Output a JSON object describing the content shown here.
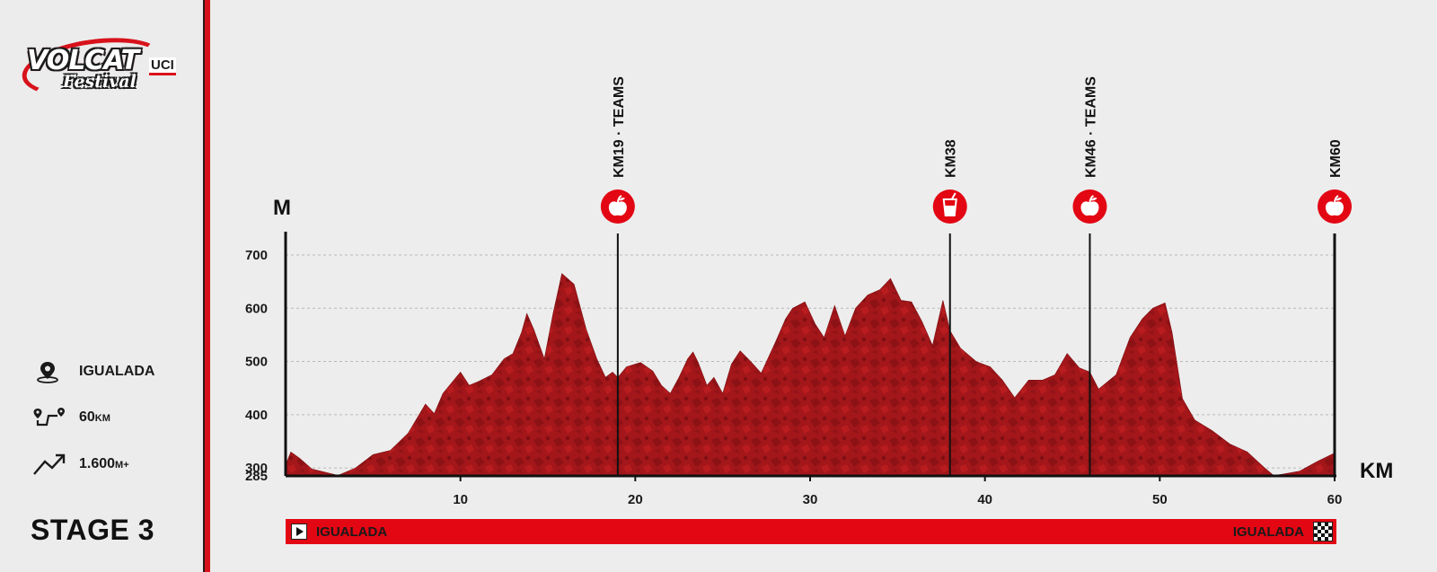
{
  "brand": {
    "logo_text": "VOLCAT",
    "logo_suffix": "UCI",
    "logo_sub": "Festival",
    "accent": "#d8121b",
    "profile_fill": "#a3161a"
  },
  "stats": {
    "location": "IGUALADA",
    "distance_value": "60",
    "distance_unit": "KM",
    "elevation_value": "1.600",
    "elevation_unit": "M+"
  },
  "stage_title": "STAGE 3",
  "route": {
    "start": "IGUALADA",
    "finish": "IGUALADA"
  },
  "chart_data": {
    "type": "area",
    "ylabel": "M",
    "xlabel": "KM",
    "xlim": [
      0,
      60
    ],
    "ylim": [
      285,
      700
    ],
    "x_ticks": [
      10,
      20,
      30,
      40,
      50,
      60
    ],
    "y_ticks": [
      285,
      300,
      400,
      500,
      600,
      700
    ],
    "grid": true,
    "profile": [
      [
        0,
        305
      ],
      [
        0.3,
        330
      ],
      [
        0.8,
        318
      ],
      [
        1.5,
        298
      ],
      [
        2.5,
        290
      ],
      [
        3,
        286
      ],
      [
        4,
        300
      ],
      [
        5,
        325
      ],
      [
        6,
        333
      ],
      [
        7,
        365
      ],
      [
        8,
        420
      ],
      [
        8.5,
        402
      ],
      [
        9,
        440
      ],
      [
        10,
        480
      ],
      [
        10.5,
        455
      ],
      [
        11,
        462
      ],
      [
        11.8,
        475
      ],
      [
        12.5,
        505
      ],
      [
        13,
        515
      ],
      [
        13.5,
        555
      ],
      [
        13.8,
        590
      ],
      [
        14.2,
        560
      ],
      [
        14.8,
        505
      ],
      [
        15.3,
        590
      ],
      [
        15.8,
        665
      ],
      [
        16.5,
        645
      ],
      [
        17.2,
        560
      ],
      [
        17.8,
        505
      ],
      [
        18.3,
        470
      ],
      [
        18.7,
        480
      ],
      [
        19,
        470
      ],
      [
        19.5,
        490
      ],
      [
        20.3,
        498
      ],
      [
        21,
        482
      ],
      [
        21.5,
        455
      ],
      [
        22,
        440
      ],
      [
        22.5,
        470
      ],
      [
        23,
        505
      ],
      [
        23.3,
        518
      ],
      [
        23.6,
        498
      ],
      [
        24.1,
        455
      ],
      [
        24.5,
        470
      ],
      [
        25,
        440
      ],
      [
        25.5,
        495
      ],
      [
        26,
        520
      ],
      [
        26.6,
        500
      ],
      [
        27.2,
        478
      ],
      [
        28,
        535
      ],
      [
        28.6,
        580
      ],
      [
        29,
        600
      ],
      [
        29.7,
        612
      ],
      [
        30.3,
        570
      ],
      [
        30.8,
        545
      ],
      [
        31.4,
        605
      ],
      [
        32,
        548
      ],
      [
        32.6,
        600
      ],
      [
        33.3,
        625
      ],
      [
        34,
        635
      ],
      [
        34.6,
        656
      ],
      [
        35.2,
        615
      ],
      [
        35.8,
        612
      ],
      [
        36.4,
        575
      ],
      [
        37,
        530
      ],
      [
        37.6,
        615
      ],
      [
        38,
        558
      ],
      [
        38.6,
        525
      ],
      [
        39.5,
        500
      ],
      [
        40.3,
        490
      ],
      [
        41,
        465
      ],
      [
        41.7,
        432
      ],
      [
        42.5,
        465
      ],
      [
        43.3,
        465
      ],
      [
        44,
        475
      ],
      [
        44.7,
        515
      ],
      [
        45.4,
        488
      ],
      [
        46,
        480
      ],
      [
        46.5,
        448
      ],
      [
        47.5,
        475
      ],
      [
        48.3,
        545
      ],
      [
        49,
        580
      ],
      [
        49.6,
        600
      ],
      [
        50.3,
        610
      ],
      [
        50.7,
        555
      ],
      [
        51.3,
        430
      ],
      [
        52,
        390
      ],
      [
        53,
        370
      ],
      [
        54,
        345
      ],
      [
        55,
        330
      ],
      [
        56,
        300
      ],
      [
        56.5,
        286
      ],
      [
        57,
        288
      ],
      [
        58,
        294
      ],
      [
        59,
        312
      ],
      [
        60,
        328
      ]
    ],
    "markers": [
      {
        "km": 19,
        "label": "KM19 · TEAMS",
        "icon": "apple-icon"
      },
      {
        "km": 38,
        "label": "KM38",
        "icon": "drink-icon"
      },
      {
        "km": 46,
        "label": "KM46 · TEAMS",
        "icon": "apple-icon"
      },
      {
        "km": 60,
        "label": "KM60",
        "icon": "apple-icon"
      }
    ]
  }
}
